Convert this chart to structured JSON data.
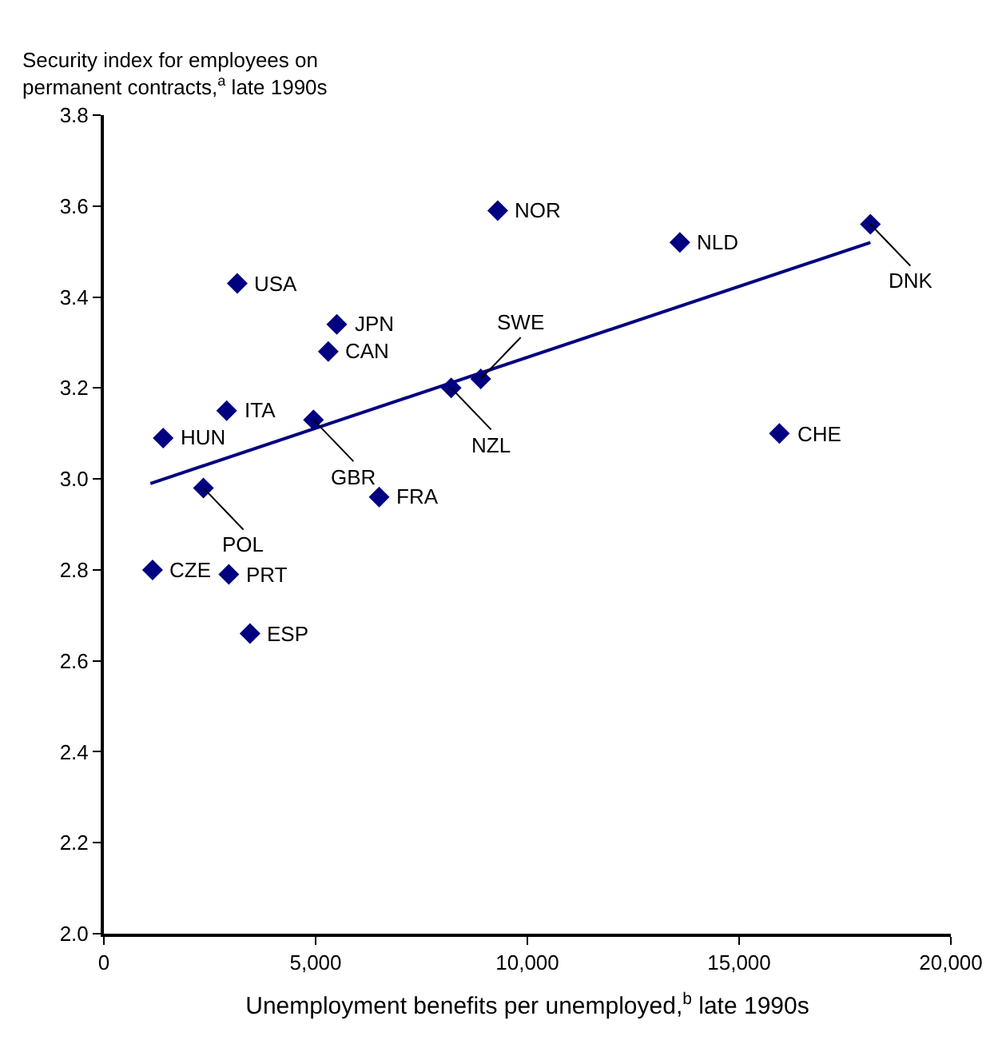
{
  "chart_data": {
    "type": "scatter",
    "ylabel": "Security index for employees on\npermanent contracts,$^{a}$ late 1990s",
    "xlabel": "Unemployment benefits per unemployed,$^{b}$ late 1990s",
    "xlim": [
      0,
      20000
    ],
    "xticks": [
      0,
      {
        "value": 5000,
        "label": "5,000"
      },
      {
        "value": 10000,
        "label": "10,000"
      },
      {
        "value": 15000,
        "label": "15,000"
      },
      {
        "value": 20000,
        "label": "20,000"
      }
    ],
    "ylim": [
      2.0,
      3.8
    ],
    "yticks": [
      {
        "value": 2.0,
        "label": "2.0"
      },
      2.2,
      2.4,
      2.6,
      2.8,
      {
        "value": 3.0,
        "label": "3.0"
      },
      3.2,
      3.4,
      3.6,
      3.8
    ],
    "grid": false,
    "legend": false,
    "marker": "diamond",
    "series": [
      {
        "name": "NOR",
        "color": "#000080",
        "x": [
          9300
        ],
        "values": [
          3.59
        ]
      },
      {
        "name": "NLD",
        "color": "#000080",
        "x": [
          13600
        ],
        "values": [
          3.52
        ]
      },
      {
        "name": "DNK",
        "color": "#000080",
        "x": [
          18100
        ],
        "values": [
          3.56
        ]
      },
      {
        "name": "USA",
        "color": "#000080",
        "x": [
          3150
        ],
        "values": [
          3.43
        ]
      },
      {
        "name": "JPN",
        "color": "#000080",
        "x": [
          5500
        ],
        "values": [
          3.34
        ]
      },
      {
        "name": "CAN",
        "color": "#000080",
        "x": [
          5300
        ],
        "values": [
          3.28
        ]
      },
      {
        "name": "ITA",
        "color": "#000080",
        "x": [
          2900
        ],
        "values": [
          3.15
        ]
      },
      {
        "name": "HUN",
        "color": "#000080",
        "x": [
          1400
        ],
        "values": [
          3.09
        ]
      },
      {
        "name": "GBR",
        "color": "#000080",
        "x": [
          4950
        ],
        "values": [
          3.13
        ]
      },
      {
        "name": "NZL",
        "color": "#000080",
        "x": [
          8200
        ],
        "values": [
          3.2
        ]
      },
      {
        "name": "SWE",
        "color": "#000080",
        "x": [
          8900
        ],
        "values": [
          3.22
        ]
      },
      {
        "name": "POL",
        "color": "#000080",
        "x": [
          2350
        ],
        "values": [
          2.98
        ]
      },
      {
        "name": "FRA",
        "color": "#000080",
        "x": [
          6500
        ],
        "values": [
          2.96
        ]
      },
      {
        "name": "CZE",
        "color": "#000080",
        "x": [
          1150
        ],
        "values": [
          2.8
        ]
      },
      {
        "name": "PRT",
        "color": "#000080",
        "x": [
          2950
        ],
        "values": [
          2.79
        ]
      },
      {
        "name": "ESP",
        "color": "#000080",
        "x": [
          3450
        ],
        "values": [
          2.66
        ]
      },
      {
        "name": "CHE",
        "color": "#000080",
        "x": [
          15950
        ],
        "values": [
          3.1
        ]
      },
      {
        "type": "line",
        "marker": "none",
        "color": "#000080",
        "x": [
          1100,
          18100
        ],
        "values": [
          2.99,
          3.52
        ]
      }
    ]
  }
}
